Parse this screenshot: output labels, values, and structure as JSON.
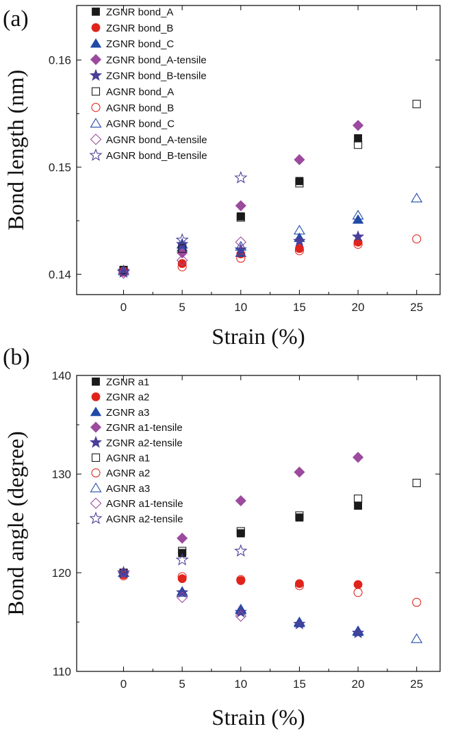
{
  "chart_data": [
    {
      "panel_label": "(a)",
      "type": "scatter",
      "xlabel": "Strain (%)",
      "ylabel": "Bond length (nm)",
      "xlim": [
        -4,
        27
      ],
      "ylim": [
        0.1381,
        0.1651
      ],
      "xticks": [
        "0",
        "5",
        "10",
        "15",
        "20",
        "25"
      ],
      "yticks": [
        "0.14",
        "0.15",
        "0.16"
      ],
      "legend_position": "top-left",
      "series": [
        {
          "name": "ZGNR bond_A",
          "marker": "square",
          "filled": true,
          "color": "#1a1a1a",
          "x": [
            0,
            5,
            10,
            15,
            20
          ],
          "y": [
            0.1404,
            0.1425,
            0.1454,
            0.1487,
            0.1527
          ]
        },
        {
          "name": "ZGNR bond_B",
          "marker": "circle",
          "filled": true,
          "color": "#e0241b",
          "x": [
            0,
            5,
            10,
            15,
            20
          ],
          "y": [
            0.1403,
            0.141,
            0.1419,
            0.1424,
            0.143
          ]
        },
        {
          "name": "ZGNR bond_C",
          "marker": "triangle",
          "filled": true,
          "color": "#1f4aa8",
          "x": [
            0,
            5,
            10,
            15,
            20
          ],
          "y": [
            0.1403,
            0.1425,
            0.142,
            0.1434,
            0.1451
          ]
        },
        {
          "name": "ZGNR bond_A-tensile",
          "marker": "diamond",
          "filled": true,
          "color": "#9b4a9e",
          "x": [
            0,
            5,
            10,
            15,
            20
          ],
          "y": [
            0.1403,
            0.142,
            0.1464,
            0.1507,
            0.1539
          ]
        },
        {
          "name": "ZGNR bond_B-tensile",
          "marker": "star",
          "filled": true,
          "color": "#4a3f99",
          "x": [
            0,
            5,
            10,
            15,
            20
          ],
          "y": [
            0.1403,
            0.1428,
            0.1423,
            0.1431,
            0.1435
          ]
        },
        {
          "name": "AGNR bond_A",
          "marker": "square",
          "filled": false,
          "color": "#1a1a1a",
          "x": [
            0,
            5,
            10,
            15,
            20,
            25
          ],
          "y": [
            0.1404,
            0.1424,
            0.1453,
            0.1485,
            0.1521,
            0.1559
          ]
        },
        {
          "name": "AGNR bond_B",
          "marker": "circle",
          "filled": false,
          "color": "#e0241b",
          "x": [
            0,
            5,
            10,
            15,
            20,
            25
          ],
          "y": [
            0.1402,
            0.1407,
            0.1415,
            0.1422,
            0.1428,
            0.1433
          ]
        },
        {
          "name": "AGNR bond_C",
          "marker": "triangle",
          "filled": false,
          "color": "#1f4aa8",
          "x": [
            0,
            5,
            10,
            15,
            20,
            25
          ],
          "y": [
            0.1403,
            0.1428,
            0.1426,
            0.1441,
            0.1455,
            0.1471
          ]
        },
        {
          "name": "AGNR bond_A-tensile",
          "marker": "diamond",
          "filled": false,
          "color": "#9b4a9e",
          "x": [
            0,
            5,
            10
          ],
          "y": [
            0.1401,
            0.1413,
            0.143
          ]
        },
        {
          "name": "AGNR bond_B-tensile",
          "marker": "star",
          "filled": false,
          "color": "#4a3f99",
          "x": [
            0,
            5,
            10
          ],
          "y": [
            0.1402,
            0.1432,
            0.149
          ]
        }
      ]
    },
    {
      "panel_label": "(b)",
      "type": "scatter",
      "xlabel": "Strain (%)",
      "ylabel": "Bond angle (degree)",
      "xlim": [
        -4,
        27
      ],
      "ylim": [
        110,
        140
      ],
      "xticks": [
        "0",
        "5",
        "10",
        "15",
        "20",
        "25"
      ],
      "yticks": [
        "110",
        "120",
        "130",
        "140"
      ],
      "legend_position": "top-left",
      "series": [
        {
          "name": "ZGNR a1",
          "marker": "square",
          "filled": true,
          "color": "#1a1a1a",
          "x": [
            0,
            5,
            10,
            15,
            20
          ],
          "y": [
            120.0,
            122.0,
            124.0,
            125.6,
            126.8
          ]
        },
        {
          "name": "ZGNR a2",
          "marker": "circle",
          "filled": true,
          "color": "#e0241b",
          "x": [
            0,
            5,
            10,
            15,
            20
          ],
          "y": [
            119.8,
            119.4,
            119.2,
            118.9,
            118.8
          ]
        },
        {
          "name": "ZGNR a3",
          "marker": "triangle",
          "filled": true,
          "color": "#1f4aa8",
          "x": [
            0,
            5,
            10,
            15,
            20
          ],
          "y": [
            120.0,
            118.1,
            116.2,
            114.9,
            114.0
          ]
        },
        {
          "name": "ZGNR a1-tensile",
          "marker": "diamond",
          "filled": true,
          "color": "#9b4a9e",
          "x": [
            0,
            5,
            10,
            15,
            20
          ],
          "y": [
            120.0,
            123.5,
            127.3,
            130.2,
            131.7
          ]
        },
        {
          "name": "ZGNR a2-tensile",
          "marker": "star",
          "filled": true,
          "color": "#4a3f99",
          "x": [
            0,
            5,
            10,
            15,
            20
          ],
          "y": [
            120.0,
            118.0,
            116.0,
            114.8,
            113.9
          ]
        },
        {
          "name": "AGNR a1",
          "marker": "square",
          "filled": false,
          "color": "#1a1a1a",
          "x": [
            0,
            5,
            10,
            15,
            20,
            25
          ],
          "y": [
            120.0,
            122.2,
            124.2,
            125.8,
            127.5,
            129.1
          ]
        },
        {
          "name": "AGNR a2",
          "marker": "circle",
          "filled": false,
          "color": "#e0241b",
          "x": [
            0,
            5,
            10,
            15,
            20,
            25
          ],
          "y": [
            119.7,
            119.6,
            119.3,
            118.7,
            118.0,
            117.0
          ]
        },
        {
          "name": "AGNR a3",
          "marker": "triangle",
          "filled": false,
          "color": "#1f4aa8",
          "x": [
            0,
            5,
            10,
            15,
            20,
            25
          ],
          "y": [
            120.0,
            118.0,
            116.3,
            115.0,
            114.1,
            113.3
          ]
        },
        {
          "name": "AGNR a1-tensile",
          "marker": "diamond",
          "filled": false,
          "color": "#9b4a9e",
          "x": [
            0,
            5,
            10
          ],
          "y": [
            120.0,
            117.5,
            115.6
          ]
        },
        {
          "name": "AGNR a2-tensile",
          "marker": "star",
          "filled": false,
          "color": "#4a3f99",
          "x": [
            0,
            5,
            10
          ],
          "y": [
            120.0,
            121.3,
            122.2
          ]
        }
      ]
    }
  ]
}
